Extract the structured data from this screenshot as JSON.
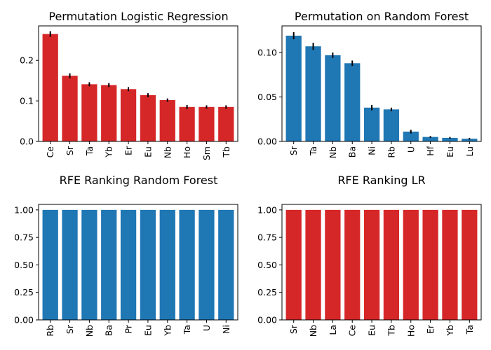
{
  "chart_data": [
    {
      "type": "bar",
      "title": "Permutation Logistic Regression",
      "categories": [
        "Ce",
        "Sr",
        "Ta",
        "Yb",
        "Er",
        "Eu",
        "Nb",
        "Ho",
        "Sm",
        "Tb"
      ],
      "values": [
        0.265,
        0.162,
        0.141,
        0.139,
        0.129,
        0.114,
        0.102,
        0.085,
        0.085,
        0.085
      ],
      "errors": [
        0.007,
        0.006,
        0.005,
        0.005,
        0.005,
        0.005,
        0.004,
        0.005,
        0.004,
        0.004
      ],
      "color": "#d62728",
      "ylim": [
        0,
        0.285
      ],
      "yticks": [
        0.0,
        0.1,
        0.2
      ],
      "ytick_labels": [
        "0.0",
        "0.1",
        "0.2"
      ],
      "grid": false
    },
    {
      "type": "bar",
      "title": "Permutation on Random Forest",
      "categories": [
        "Sr",
        "Ta",
        "Nb",
        "Ba",
        "Ni",
        "Rb",
        "U",
        "Hf",
        "Eu",
        "Lu"
      ],
      "values": [
        0.119,
        0.107,
        0.097,
        0.088,
        0.038,
        0.036,
        0.011,
        0.005,
        0.004,
        0.003
      ],
      "errors": [
        0.004,
        0.004,
        0.003,
        0.003,
        0.003,
        0.002,
        0.002,
        0.001,
        0.001,
        0.001
      ],
      "color": "#1f77b4",
      "ylim": [
        0,
        0.13
      ],
      "yticks": [
        0.0,
        0.05,
        0.1
      ],
      "ytick_labels": [
        "0.00",
        "0.05",
        "0.10"
      ],
      "grid": false
    },
    {
      "type": "bar",
      "title": "RFE Ranking Random Forest",
      "categories": [
        "Rb",
        "Sr",
        "Nb",
        "Ba",
        "Pr",
        "Eu",
        "Yb",
        "Ta",
        "U",
        "Ni"
      ],
      "values": [
        1,
        1,
        1,
        1,
        1,
        1,
        1,
        1,
        1,
        1
      ],
      "color": "#1f77b4",
      "ylim": [
        0,
        1.05
      ],
      "yticks": [
        0.0,
        0.25,
        0.5,
        0.75,
        1.0
      ],
      "ytick_labels": [
        "0.00",
        "0.25",
        "0.50",
        "0.75",
        "1.00"
      ],
      "grid": false
    },
    {
      "type": "bar",
      "title": "RFE Ranking LR",
      "categories": [
        "Sr",
        "Nb",
        "La",
        "Ce",
        "Eu",
        "Tb",
        "Ho",
        "Er",
        "Yb",
        "Ta"
      ],
      "values": [
        1,
        1,
        1,
        1,
        1,
        1,
        1,
        1,
        1,
        1
      ],
      "color": "#d62728",
      "ylim": [
        0,
        1.05
      ],
      "yticks": [
        0.0,
        0.25,
        0.5,
        0.75,
        1.0
      ],
      "ytick_labels": [
        "0.00",
        "0.25",
        "0.50",
        "0.75",
        "1.00"
      ],
      "grid": false
    }
  ]
}
